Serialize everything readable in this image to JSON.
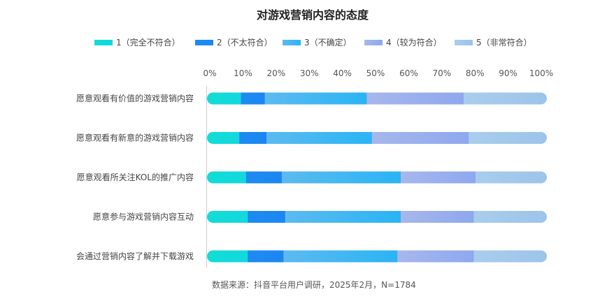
{
  "chart_data": {
    "type": "bar",
    "orientation": "horizontal",
    "stacked": true,
    "title": "对游戏营销内容的态度",
    "categories": [
      "愿意观看有价值的游戏营销内容",
      "愿意观看有新意的游戏营销内容",
      "愿意观看所关注KOL的推广内容",
      "愿意参与游戏营销内容互动",
      "会通过营销内容了解并下载游戏"
    ],
    "series": [
      {
        "name": "1（完全不符合）",
        "values": [
          10.0,
          9.5,
          11.5,
          12.0,
          12.0
        ],
        "color": "#11ddd5",
        "color_end": "#13d7de"
      },
      {
        "name": "2（不太符合）",
        "values": [
          7.0,
          8.0,
          10.5,
          11.0,
          10.5
        ],
        "color": "#1e8bf0",
        "color_end": "#1b86f3"
      },
      {
        "name": "3（不确定）",
        "values": [
          30.0,
          31.0,
          35.0,
          34.0,
          33.5
        ],
        "color": "#5cbaf0",
        "color_end": "#2ab4f5"
      },
      {
        "name": "4（较为符合）",
        "values": [
          28.5,
          28.5,
          22.0,
          21.5,
          22.5
        ],
        "color": "#a7b7ec",
        "color_end": "#8ea8ef"
      },
      {
        "name": "5（非常符合）",
        "values": [
          24.5,
          23.0,
          21.0,
          21.5,
          21.5
        ],
        "color": "#a9cdec",
        "color_end": "#9cc4ea"
      }
    ],
    "x_axis": {
      "ticks": [
        "0%",
        "10%",
        "20%",
        "30%",
        "40%",
        "50%",
        "60%",
        "70%",
        "80%",
        "90%",
        "100%"
      ],
      "range": [
        0,
        100
      ]
    },
    "legend_position": "top",
    "grid": false
  },
  "source_note": "数据来源：抖音平台用户调研，2025年2月，N=1784"
}
